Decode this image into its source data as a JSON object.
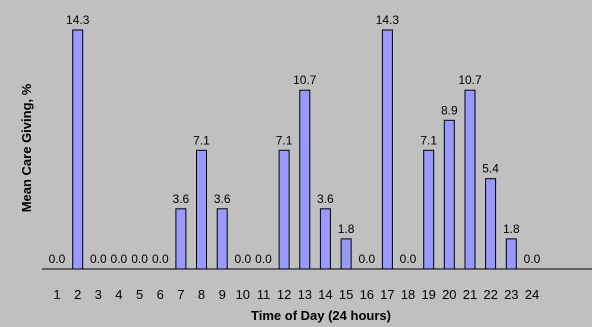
{
  "chart_data": {
    "type": "bar",
    "xlabel": "Time of Day (24 hours)",
    "ylabel": "Mean Care Giving, %",
    "categories": [
      "1",
      "2",
      "3",
      "4",
      "5",
      "6",
      "7",
      "8",
      "9",
      "10",
      "11",
      "12",
      "13",
      "14",
      "15",
      "16",
      "17",
      "18",
      "19",
      "20",
      "21",
      "22",
      "23",
      "24"
    ],
    "values": [
      0.0,
      14.3,
      0.0,
      0.0,
      0.0,
      0.0,
      3.6,
      7.1,
      3.6,
      0.0,
      0.0,
      7.1,
      10.7,
      3.6,
      1.8,
      0.0,
      14.3,
      0.0,
      7.1,
      8.9,
      10.7,
      5.4,
      1.8,
      0.0
    ],
    "value_labels": [
      "0.0",
      "14.3",
      "0.0",
      "0.0",
      "0.0",
      "0.0",
      "3.6",
      "7.1",
      "3.6",
      "0.0",
      "0.0",
      "7.1",
      "10.7",
      "3.6",
      "1.8",
      "0.0",
      "14.3",
      "0.0",
      "7.1",
      "8.9",
      "10.7",
      "5.4",
      "1.8",
      "0.0"
    ],
    "ylim": [
      0,
      14.3
    ],
    "grid": false,
    "legend": "none",
    "colors": {
      "bar_fill": "#9999ff",
      "bar_stroke": "#000000",
      "background": "#c0c0c0"
    }
  }
}
